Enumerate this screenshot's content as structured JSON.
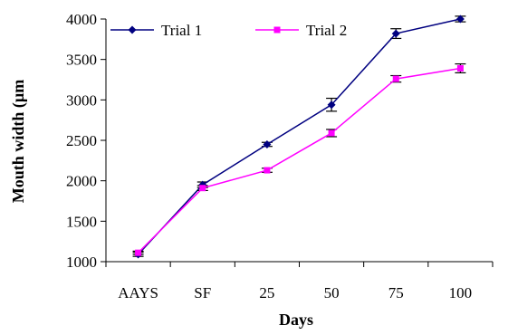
{
  "chart_data": {
    "type": "line",
    "xlabel": "Days",
    "ylabel": "Mouth width (µm",
    "categories": [
      "AAYS",
      "SF",
      "25",
      "50",
      "75",
      "100"
    ],
    "ylim": [
      1000,
      4000
    ],
    "yticks": [
      "1000",
      "1500",
      "2000",
      "2500",
      "3000",
      "3500",
      "4000"
    ],
    "grid": false,
    "legend_position": "top",
    "series": [
      {
        "name": "Trial 1",
        "color": "#000080",
        "marker": "diamond",
        "values": [
          1090,
          1950,
          2450,
          2940,
          3820,
          4000
        ],
        "errors": [
          25,
          35,
          25,
          80,
          60,
          35
        ]
      },
      {
        "name": "Trial 2",
        "color": "#FF00FF",
        "marker": "square",
        "values": [
          1110,
          1910,
          2130,
          2590,
          3260,
          3390
        ],
        "errors": [
          20,
          30,
          25,
          45,
          40,
          55
        ]
      }
    ]
  }
}
